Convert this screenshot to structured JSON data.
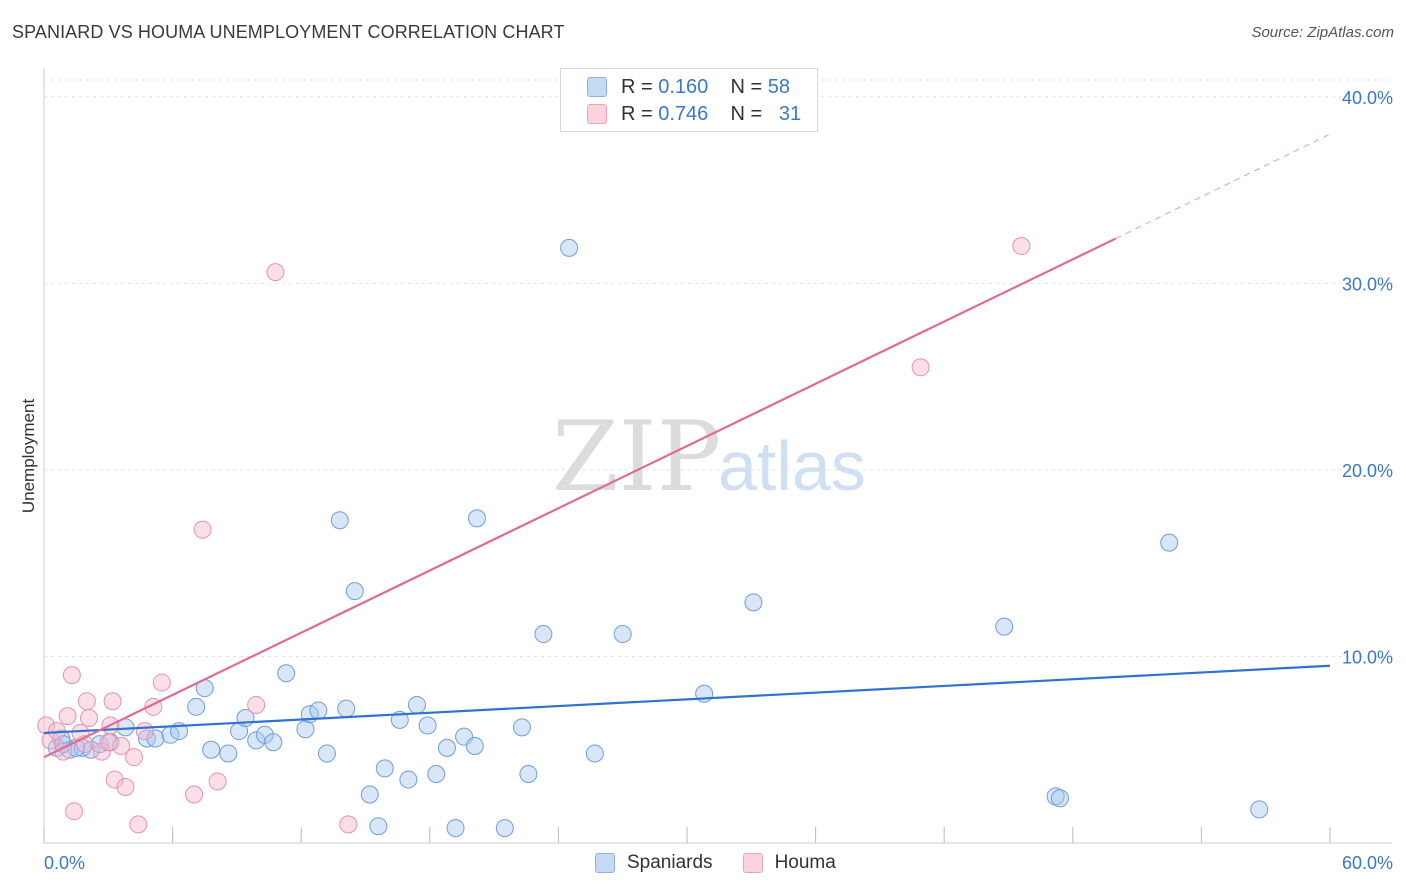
{
  "title": "SPANIARD VS HOUMA UNEMPLOYMENT CORRELATION CHART",
  "source": "Source: ZipAtlas.com",
  "watermark": {
    "zip": "ZIP",
    "atlas": "atlas"
  },
  "legend": {
    "rows": [
      {
        "r_label": "R =",
        "r_value": "0.160",
        "n_label": "N =",
        "n_value": "58",
        "color": "#a9c8f0"
      },
      {
        "r_label": "R =",
        "r_value": "0.746",
        "n_label": "N =",
        "n_value": "31",
        "color": "#f6b8cb"
      }
    ]
  },
  "bottom_legend": [
    {
      "label": "Spaniards",
      "color": "#a9c8f0"
    },
    {
      "label": "Houma",
      "color": "#f6b8cb"
    }
  ],
  "chart_data": {
    "type": "scatter",
    "title": "SPANIARD VS HOUMA UNEMPLOYMENT CORRELATION CHART",
    "ylabel": "Unemployment",
    "xlabel": "",
    "xlim": [
      0,
      60
    ],
    "ylim": [
      0,
      40.9
    ],
    "x_tick_labels": [
      "0.0%",
      "60.0%"
    ],
    "y_ticks": [
      10,
      20,
      30,
      40
    ],
    "y_tick_labels": [
      "10.0%",
      "20.0%",
      "30.0%",
      "40.0%"
    ],
    "colors": {
      "spaniards_fill": "#a9c8f0",
      "spaniards_stroke": "#6d9fdc",
      "spaniards_line": "#2f73d0",
      "houma_fill": "#f6b8cb",
      "houma_stroke": "#e892ad",
      "houma_line": "#e06a92",
      "axis_label": "#3a78c9"
    },
    "series": [
      {
        "name": "Spaniards",
        "trend": {
          "x0": 0,
          "y0": 5.9,
          "x1": 60,
          "y1": 9.5
        },
        "points": [
          [
            0.6,
            5.1
          ],
          [
            0.8,
            5.6
          ],
          [
            1.2,
            5.0
          ],
          [
            1.8,
            5.1
          ],
          [
            2.2,
            5.0
          ],
          [
            2.6,
            5.3
          ],
          [
            3.1,
            5.4
          ],
          [
            3.8,
            6.2
          ],
          [
            4.8,
            5.6
          ],
          [
            5.2,
            5.6
          ],
          [
            5.9,
            5.8
          ],
          [
            6.3,
            6.0
          ],
          [
            7.1,
            7.3
          ],
          [
            7.5,
            8.3
          ],
          [
            7.8,
            5.0
          ],
          [
            8.6,
            4.8
          ],
          [
            9.1,
            6.0
          ],
          [
            9.4,
            6.7
          ],
          [
            9.9,
            5.5
          ],
          [
            10.3,
            5.8
          ],
          [
            10.7,
            5.4
          ],
          [
            11.3,
            9.1
          ],
          [
            12.2,
            6.1
          ],
          [
            12.4,
            6.9
          ],
          [
            12.8,
            7.1
          ],
          [
            13.2,
            4.8
          ],
          [
            13.8,
            17.3
          ],
          [
            14.1,
            7.2
          ],
          [
            14.5,
            13.5
          ],
          [
            15.2,
            2.6
          ],
          [
            15.6,
            0.9
          ],
          [
            15.9,
            4.0
          ],
          [
            16.6,
            6.6
          ],
          [
            17.0,
            3.4
          ],
          [
            17.4,
            7.4
          ],
          [
            17.9,
            6.3
          ],
          [
            18.3,
            3.7
          ],
          [
            18.8,
            5.1
          ],
          [
            19.2,
            0.8
          ],
          [
            19.6,
            5.7
          ],
          [
            20.2,
            17.4
          ],
          [
            20.1,
            5.2
          ],
          [
            21.5,
            0.8
          ],
          [
            22.3,
            6.2
          ],
          [
            22.6,
            3.7
          ],
          [
            23.3,
            11.2
          ],
          [
            24.5,
            31.9
          ],
          [
            25.7,
            4.8
          ],
          [
            27.0,
            11.2
          ],
          [
            30.8,
            8.0
          ],
          [
            33.1,
            12.9
          ],
          [
            44.8,
            11.6
          ],
          [
            47.2,
            2.5
          ],
          [
            47.4,
            2.4
          ],
          [
            52.5,
            16.1
          ],
          [
            56.7,
            1.8
          ],
          [
            0.9,
            5.3
          ],
          [
            1.5,
            5.1
          ]
        ]
      },
      {
        "name": "Houma",
        "trend": {
          "x0": 0,
          "y0": 4.6,
          "x1": 50,
          "y1": 32.4
        },
        "trend_dashed": {
          "x0": 50,
          "y0": 32.4,
          "x1": 60,
          "y1": 38.0
        },
        "points": [
          [
            0.1,
            6.3
          ],
          [
            0.3,
            5.5
          ],
          [
            0.6,
            6.0
          ],
          [
            0.9,
            4.9
          ],
          [
            1.1,
            6.8
          ],
          [
            1.3,
            9.0
          ],
          [
            1.4,
            1.7
          ],
          [
            1.7,
            5.9
          ],
          [
            1.9,
            5.3
          ],
          [
            2.0,
            7.6
          ],
          [
            2.1,
            6.7
          ],
          [
            2.7,
            4.9
          ],
          [
            3.0,
            5.4
          ],
          [
            3.1,
            6.3
          ],
          [
            3.2,
            7.6
          ],
          [
            3.3,
            3.4
          ],
          [
            3.6,
            5.2
          ],
          [
            3.8,
            3.0
          ],
          [
            4.2,
            4.6
          ],
          [
            4.4,
            1.0
          ],
          [
            4.7,
            6.0
          ],
          [
            5.1,
            7.3
          ],
          [
            5.5,
            8.6
          ],
          [
            7.0,
            2.6
          ],
          [
            7.4,
            16.8
          ],
          [
            8.1,
            3.3
          ],
          [
            9.9,
            7.4
          ],
          [
            10.8,
            30.6
          ],
          [
            14.2,
            1.0
          ],
          [
            40.9,
            25.5
          ],
          [
            45.6,
            32.0
          ]
        ]
      }
    ]
  }
}
